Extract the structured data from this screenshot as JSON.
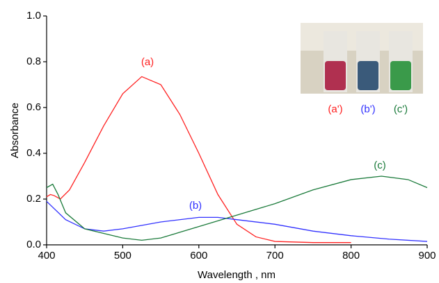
{
  "chart_data": {
    "type": "line",
    "xlabel": "Wavelength , nm",
    "ylabel": "Absorbance",
    "xlim": [
      400,
      900
    ],
    "xticks": [
      400,
      500,
      600,
      700,
      800,
      900
    ],
    "ylim": [
      0,
      1.0
    ],
    "yticks": [
      {
        "value": 0,
        "label": "0.0"
      },
      0.2,
      0.4,
      0.6,
      0.8,
      {
        "value": 1.0,
        "label": "1.0"
      }
    ],
    "series": [
      {
        "name": "(a)",
        "color": "#ff2020",
        "x": [
          400,
          405,
          410,
          418,
          430,
          450,
          475,
          500,
          525,
          550,
          575,
          600,
          625,
          650,
          675,
          700,
          750,
          800
        ],
        "values": [
          0.21,
          0.22,
          0.215,
          0.2,
          0.24,
          0.36,
          0.52,
          0.66,
          0.735,
          0.7,
          0.57,
          0.4,
          0.22,
          0.09,
          0.035,
          0.015,
          0.01,
          0.01
        ]
      },
      {
        "name": "(b)",
        "color": "#3030ff",
        "x": [
          400,
          425,
          450,
          475,
          500,
          550,
          600,
          625,
          650,
          700,
          750,
          800,
          850,
          900
        ],
        "values": [
          0.19,
          0.11,
          0.07,
          0.06,
          0.07,
          0.1,
          0.12,
          0.12,
          0.11,
          0.09,
          0.06,
          0.04,
          0.025,
          0.015
        ]
      },
      {
        "name": "(c)",
        "color": "#1a7a3a",
        "x": [
          400,
          408,
          415,
          425,
          450,
          475,
          500,
          525,
          550,
          600,
          650,
          700,
          750,
          800,
          840,
          875,
          900
        ],
        "values": [
          0.25,
          0.265,
          0.22,
          0.14,
          0.07,
          0.05,
          0.03,
          0.02,
          0.03,
          0.08,
          0.13,
          0.18,
          0.24,
          0.285,
          0.3,
          0.285,
          0.25
        ]
      }
    ],
    "inset_labels": [
      "(a')",
      "(b')",
      "(c')"
    ]
  }
}
